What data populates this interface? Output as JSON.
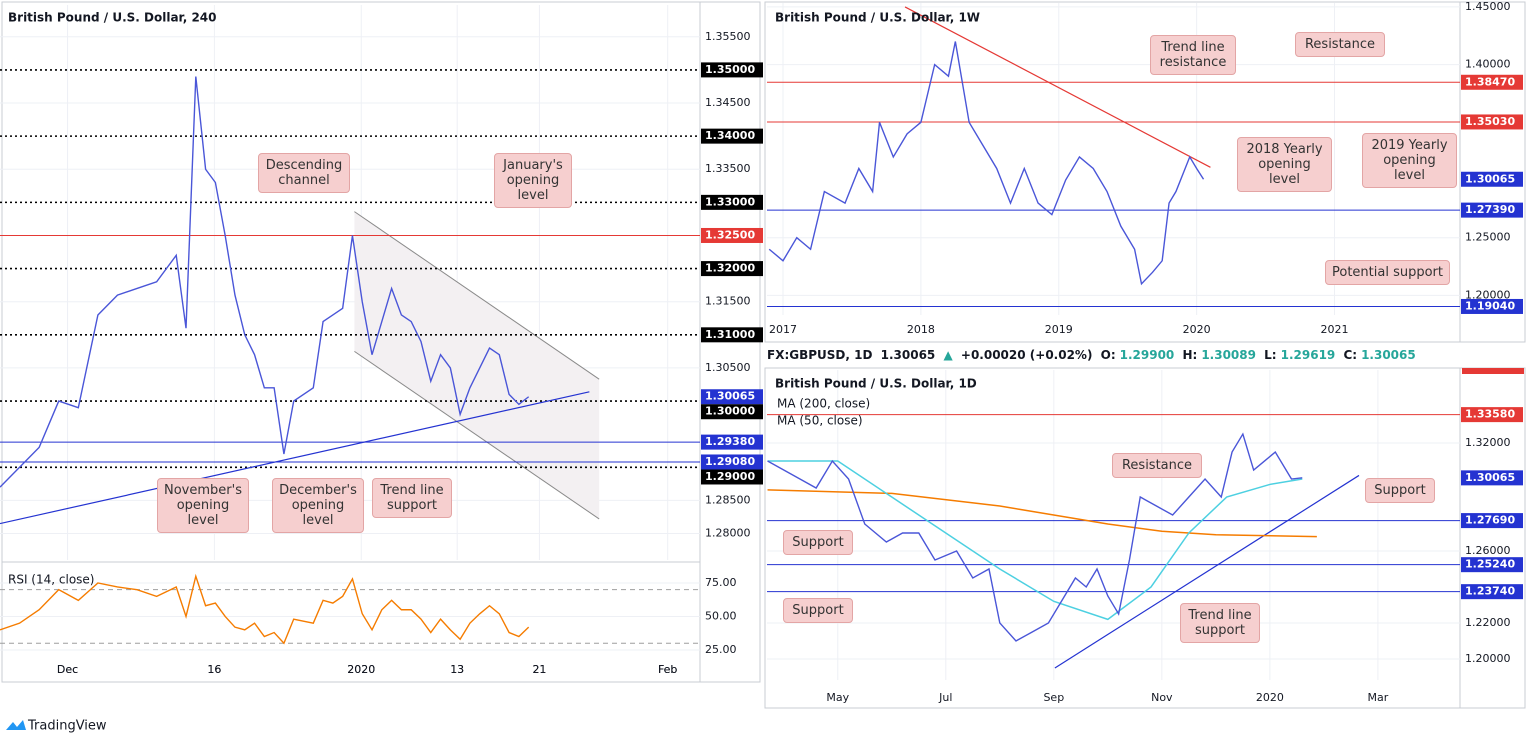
{
  "chart_data": [
    {
      "type": "line",
      "title": "British Pound / U.S. Dollar, 240",
      "color": "#4a56d8",
      "x": [
        0,
        2,
        4,
        6,
        8,
        10,
        12,
        14,
        16,
        18,
        19,
        20,
        21,
        22,
        23,
        24,
        25,
        26,
        27,
        28,
        29,
        30,
        32,
        33,
        34,
        35,
        36,
        37,
        38,
        39,
        40,
        41,
        42,
        43,
        44,
        45,
        46,
        47,
        48,
        49,
        50,
        51,
        52,
        53,
        54
      ],
      "values": [
        1.287,
        1.29,
        1.293,
        1.3,
        1.299,
        1.313,
        1.316,
        1.317,
        1.318,
        1.322,
        1.311,
        1.349,
        1.335,
        1.333,
        1.325,
        1.316,
        1.31,
        1.307,
        1.302,
        1.302,
        1.292,
        1.3,
        1.302,
        1.312,
        1.313,
        1.314,
        1.325,
        1.315,
        1.307,
        1.312,
        1.317,
        1.313,
        1.312,
        1.309,
        1.303,
        1.307,
        1.305,
        1.298,
        1.302,
        1.305,
        1.308,
        1.307,
        1.301,
        1.2995,
        1.30065
      ],
      "xlim": [
        0,
        71.5
      ],
      "ylim": [
        1.276,
        1.3598
      ],
      "xticks": [
        {
          "value": 6.9,
          "label": "Dec"
        },
        {
          "value": 21.9,
          "label": "16"
        },
        {
          "value": 36.9,
          "label": "2020"
        },
        {
          "value": 46.7,
          "label": "13"
        },
        {
          "value": 55.1,
          "label": "21"
        },
        {
          "value": 68.2,
          "label": "Feb"
        }
      ],
      "yticks": [
        {
          "value": 1.355,
          "label": "1.35500"
        },
        {
          "value": 1.345,
          "label": "1.34500"
        },
        {
          "value": 1.335,
          "label": "1.33500"
        },
        {
          "value": 1.315,
          "label": "1.31500"
        },
        {
          "value": 1.305,
          "label": "1.30500"
        },
        {
          "value": 1.285,
          "label": "1.28500"
        },
        {
          "value": 1.28,
          "label": "1.28000"
        }
      ],
      "levels": [
        {
          "value": 1.35,
          "label": "1.35000",
          "color": "#000000",
          "style": "dotted"
        },
        {
          "value": 1.34,
          "label": "1.34000",
          "color": "#000000",
          "style": "dotted"
        },
        {
          "value": 1.33,
          "label": "1.33000",
          "color": "#000000",
          "style": "dotted"
        },
        {
          "value": 1.325,
          "label": "1.32500",
          "color": "#e53935",
          "style": "solid"
        },
        {
          "value": 1.32,
          "label": "1.32000",
          "color": "#000000",
          "style": "dotted"
        },
        {
          "value": 1.31,
          "label": "1.31000",
          "color": "#000000",
          "style": "dotted"
        },
        {
          "value": 1.30065,
          "label": "1.30065",
          "color": "#2433d1",
          "style": "none"
        },
        {
          "value": 1.3,
          "label": "1.30000",
          "color": "#000000",
          "style": "dotted"
        },
        {
          "value": 1.2938,
          "label": "1.29380",
          "color": "#2433d1",
          "style": "solid"
        },
        {
          "value": 1.2908,
          "label": "1.29080",
          "color": "#2433d1",
          "style": "solid"
        },
        {
          "value": 1.29,
          "label": "1.29000",
          "color": "#000000",
          "style": "dotted"
        }
      ],
      "channel": [
        {
          "x": [
            36.2,
            61.2
          ],
          "y": [
            1.3286,
            1.3033
          ]
        },
        {
          "x": [
            36.2,
            61.2
          ],
          "y": [
            1.3075,
            1.2822
          ]
        }
      ],
      "trend_lines": [
        {
          "x": [
            0,
            60.2
          ],
          "y": [
            1.2815,
            1.3014
          ],
          "color": "#2433d1"
        }
      ],
      "annotations": [
        "Descending channel",
        "January's opening level",
        "November's opening level",
        "December's opening level",
        "Trend line support"
      ]
    },
    {
      "type": "line",
      "title": "RSI (14, close)",
      "color": "#f57c00",
      "x": [
        0,
        2,
        4,
        6,
        8,
        10,
        12,
        14,
        16,
        18,
        19,
        20,
        21,
        22,
        23,
        24,
        25,
        26,
        27,
        28,
        29,
        30,
        32,
        33,
        34,
        35,
        36,
        37,
        38,
        39,
        40,
        41,
        42,
        43,
        44,
        45,
        46,
        47,
        48,
        49,
        50,
        51,
        52,
        53,
        54
      ],
      "values": [
        40,
        45,
        55,
        70,
        62,
        75,
        72,
        70,
        65,
        72,
        50,
        80,
        58,
        60,
        50,
        42,
        40,
        45,
        35,
        38,
        30,
        48,
        45,
        62,
        60,
        65,
        78,
        52,
        40,
        55,
        62,
        55,
        55,
        48,
        38,
        48,
        40,
        33,
        45,
        52,
        58,
        52,
        38,
        35,
        42
      ],
      "xlim": [
        0,
        71.5
      ],
      "ylim": [
        17.5,
        88.4
      ],
      "yticks": [
        {
          "value": 75,
          "label": "75.00"
        },
        {
          "value": 50,
          "label": "50.00"
        },
        {
          "value": 25,
          "label": "25.00"
        }
      ],
      "levels": [
        {
          "value": 70,
          "color": "#9e9e9e",
          "style": "dashed"
        },
        {
          "value": 30,
          "color": "#9e9e9e",
          "style": "dashed"
        }
      ]
    },
    {
      "type": "line",
      "title": "British Pound / U.S. Dollar, 1W",
      "color": "#4a56d8",
      "x": [
        2016.9,
        2017.0,
        2017.1,
        2017.2,
        2017.3,
        2017.45,
        2017.55,
        2017.65,
        2017.7,
        2017.8,
        2017.9,
        2018.0,
        2018.1,
        2018.2,
        2018.25,
        2018.35,
        2018.45,
        2018.55,
        2018.65,
        2018.75,
        2018.85,
        2018.95,
        2019.05,
        2019.15,
        2019.25,
        2019.35,
        2019.45,
        2019.55,
        2019.6,
        2019.68,
        2019.75,
        2019.8,
        2019.85,
        2019.95,
        2020.0,
        2020.05
      ],
      "values": [
        1.24,
        1.23,
        1.25,
        1.24,
        1.29,
        1.28,
        1.31,
        1.29,
        1.35,
        1.32,
        1.34,
        1.35,
        1.4,
        1.39,
        1.42,
        1.35,
        1.33,
        1.31,
        1.28,
        1.31,
        1.28,
        1.27,
        1.3,
        1.32,
        1.31,
        1.29,
        1.26,
        1.24,
        1.21,
        1.22,
        1.23,
        1.28,
        1.29,
        1.32,
        1.31,
        1.30065
      ],
      "xlim": [
        2016.884,
        2021.91
      ],
      "ylim": [
        1.183,
        1.4534
      ],
      "xticks": [
        2017,
        2018,
        2019,
        2020,
        2021
      ],
      "yticks": [
        {
          "value": 1.45,
          "label": "1.45000"
        },
        {
          "value": 1.4,
          "label": "1.40000"
        },
        {
          "value": 1.25,
          "label": "1.25000"
        },
        {
          "value": 1.2,
          "label": "1.20000"
        }
      ],
      "levels": [
        {
          "value": 1.3847,
          "label": "1.38470",
          "color": "#e53935",
          "style": "solid"
        },
        {
          "value": 1.3503,
          "label": "1.35030",
          "color": "#e53935",
          "style": "solid"
        },
        {
          "value": 1.30065,
          "label": "1.30065",
          "color": "#2433d1",
          "style": "none"
        },
        {
          "value": 1.2739,
          "label": "1.27390",
          "color": "#2433d1",
          "style": "solid"
        },
        {
          "value": 1.1904,
          "label": "1.19040",
          "color": "#2433d1",
          "style": "solid"
        }
      ],
      "trend_lines": [
        {
          "x": [
            2017.885,
            2020.1
          ],
          "y": [
            1.45,
            1.311
          ],
          "color": "#e53935"
        }
      ],
      "annotations": [
        "Trend line resistance",
        "Resistance",
        "2018 Yearly opening level",
        "2019 Yearly opening level",
        "Potential support"
      ]
    },
    {
      "type": "line",
      "title": "British Pound / U.S. Dollar, 1D",
      "color": "#4a56d8",
      "info": {
        "symbol": "FX:GBPUSD, 1D",
        "last": "1.30065",
        "arrow": "▲",
        "change": "+0.00020 (+0.02%)",
        "ohlc": [
          [
            "O:",
            "1.29900"
          ],
          [
            "H:",
            "1.30089"
          ],
          [
            "L:",
            "1.29619"
          ],
          [
            "C:",
            "1.30065"
          ]
        ]
      },
      "x": [
        3.7,
        4.0,
        4.3,
        4.6,
        4.9,
        5.2,
        5.5,
        5.9,
        6.2,
        6.5,
        6.8,
        7.2,
        7.5,
        7.8,
        8.0,
        8.3,
        8.6,
        8.9,
        9.1,
        9.4,
        9.6,
        9.8,
        10.0,
        10.2,
        10.4,
        10.6,
        10.9,
        11.2,
        11.5,
        11.8,
        12.1,
        12.3,
        12.5,
        12.7,
        12.9,
        13.1,
        13.4,
        13.6
      ],
      "values": [
        1.31,
        1.305,
        1.3,
        1.295,
        1.31,
        1.3,
        1.275,
        1.265,
        1.27,
        1.27,
        1.255,
        1.26,
        1.245,
        1.25,
        1.22,
        1.21,
        1.215,
        1.22,
        1.23,
        1.245,
        1.24,
        1.25,
        1.235,
        1.225,
        1.255,
        1.29,
        1.285,
        1.28,
        1.29,
        1.3,
        1.29,
        1.315,
        1.325,
        1.305,
        1.31,
        1.315,
        1.3,
        1.30065
      ],
      "series": [
        {
          "name": "MA (200, close)",
          "color": "#f57c00",
          "x": [
            3.7,
            6,
            8,
            10,
            11,
            12,
            13.87
          ],
          "values": [
            1.294,
            1.292,
            1.285,
            1.275,
            1.271,
            1.269,
            1.268
          ]
        },
        {
          "name": "MA (50, close)",
          "color": "#4dd0e1",
          "x": [
            3.7,
            5,
            6,
            7,
            8,
            9,
            10,
            10.8,
            11.5,
            12.2,
            13,
            13.6
          ],
          "values": [
            1.31,
            1.31,
            1.29,
            1.27,
            1.25,
            1.232,
            1.222,
            1.24,
            1.27,
            1.29,
            1.297,
            1.3
          ]
        }
      ],
      "xlim": [
        3.69,
        16.52
      ],
      "ylim": [
        1.1883,
        1.3606
      ],
      "xticks": [
        {
          "value": 5,
          "label": "May"
        },
        {
          "value": 7,
          "label": "Jul"
        },
        {
          "value": 9,
          "label": "Sep"
        },
        {
          "value": 11,
          "label": "Nov"
        },
        {
          "value": 13,
          "label": "2020"
        },
        {
          "value": 15,
          "label": "Mar"
        }
      ],
      "yticks": [
        {
          "value": 1.32,
          "label": "1.32000"
        },
        {
          "value": 1.26,
          "label": "1.26000"
        },
        {
          "value": 1.22,
          "label": "1.22000"
        },
        {
          "value": 1.2,
          "label": "1.20000"
        }
      ],
      "levels": [
        {
          "value": 1.3358,
          "label": "1.33580",
          "color": "#e53935",
          "style": "solid"
        },
        {
          "value": 1.30065,
          "label": "1.30065",
          "color": "#2433d1",
          "style": "none"
        },
        {
          "value": 1.2769,
          "label": "1.27690",
          "color": "#2433d1",
          "style": "solid"
        },
        {
          "value": 1.2524,
          "label": "1.25240",
          "color": "#2433d1",
          "style": "solid"
        },
        {
          "value": 1.2374,
          "label": "1.23740",
          "color": "#2433d1",
          "style": "solid"
        }
      ],
      "trend_lines": [
        {
          "x": [
            9.02,
            14.65
          ],
          "y": [
            1.195,
            1.302
          ],
          "color": "#2433d1"
        }
      ],
      "annotations": [
        "Resistance",
        "Support",
        "Support",
        "Support",
        "Trend line support"
      ]
    }
  ],
  "footer": "TradingView"
}
